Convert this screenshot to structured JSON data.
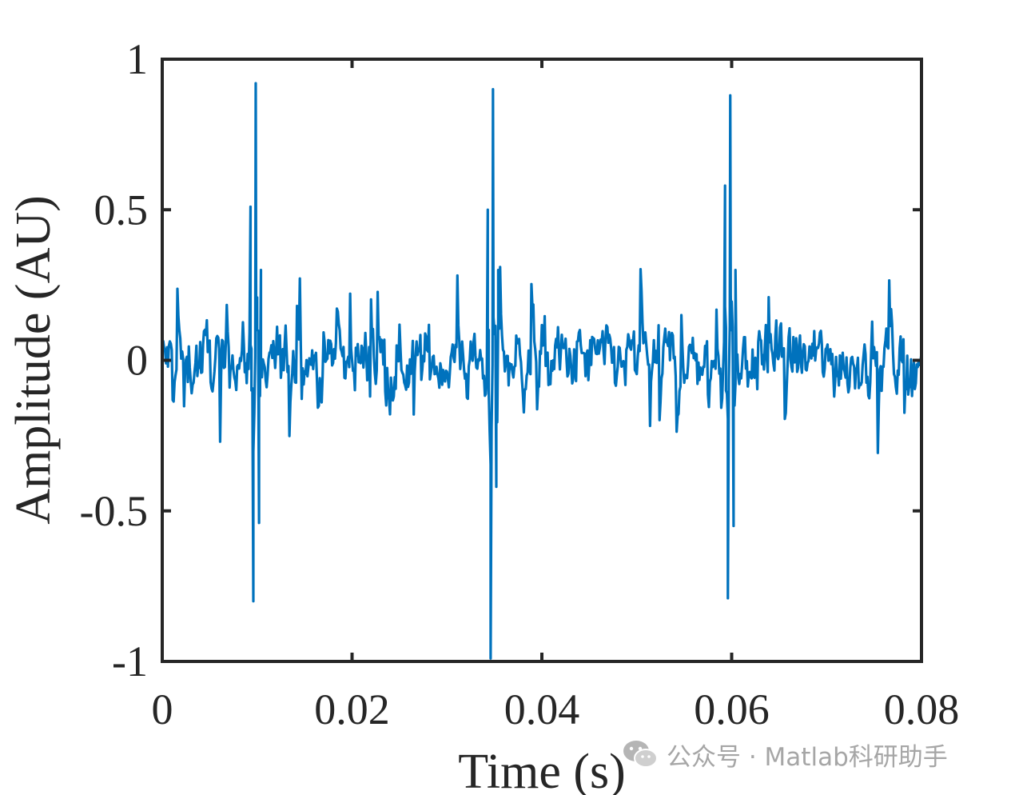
{
  "chart_data": {
    "type": "line",
    "title": "",
    "xlabel": "Time (s)",
    "ylabel": "Amplitude (AU)",
    "xlim": [
      0,
      0.08
    ],
    "ylim": [
      -1,
      1
    ],
    "xticks": [
      0,
      0.02,
      0.04,
      0.06,
      0.08
    ],
    "xtick_labels": [
      "0",
      "0.02",
      "0.04",
      "0.06",
      "0.08"
    ],
    "yticks": [
      -1,
      -0.5,
      0,
      0.5,
      1
    ],
    "ytick_labels": [
      "-1",
      "-0.5",
      "0",
      "0.5",
      "1"
    ],
    "grid": false,
    "legend": "none",
    "line_color": "#0072BD",
    "series": [
      {
        "noise_sample_interval": 0.0001,
        "noise_baseline_amplitude": 0.12,
        "impulses": [
          {
            "t": 0.0098,
            "peak": 0.92,
            "trough": -0.8,
            "pre_peak": 0.51,
            "after_trough": -0.54
          },
          {
            "t": 0.0348,
            "peak": 0.9,
            "trough": -0.99,
            "pre_peak": 0.5,
            "after_trough": -0.42
          },
          {
            "t": 0.0598,
            "peak": 0.88,
            "trough": -0.79,
            "pre_peak": 0.58,
            "after_trough": -0.55
          }
        ]
      }
    ]
  },
  "watermark": {
    "icon": "wechat-icon",
    "text": "公众号 · Matlab科研助手"
  }
}
